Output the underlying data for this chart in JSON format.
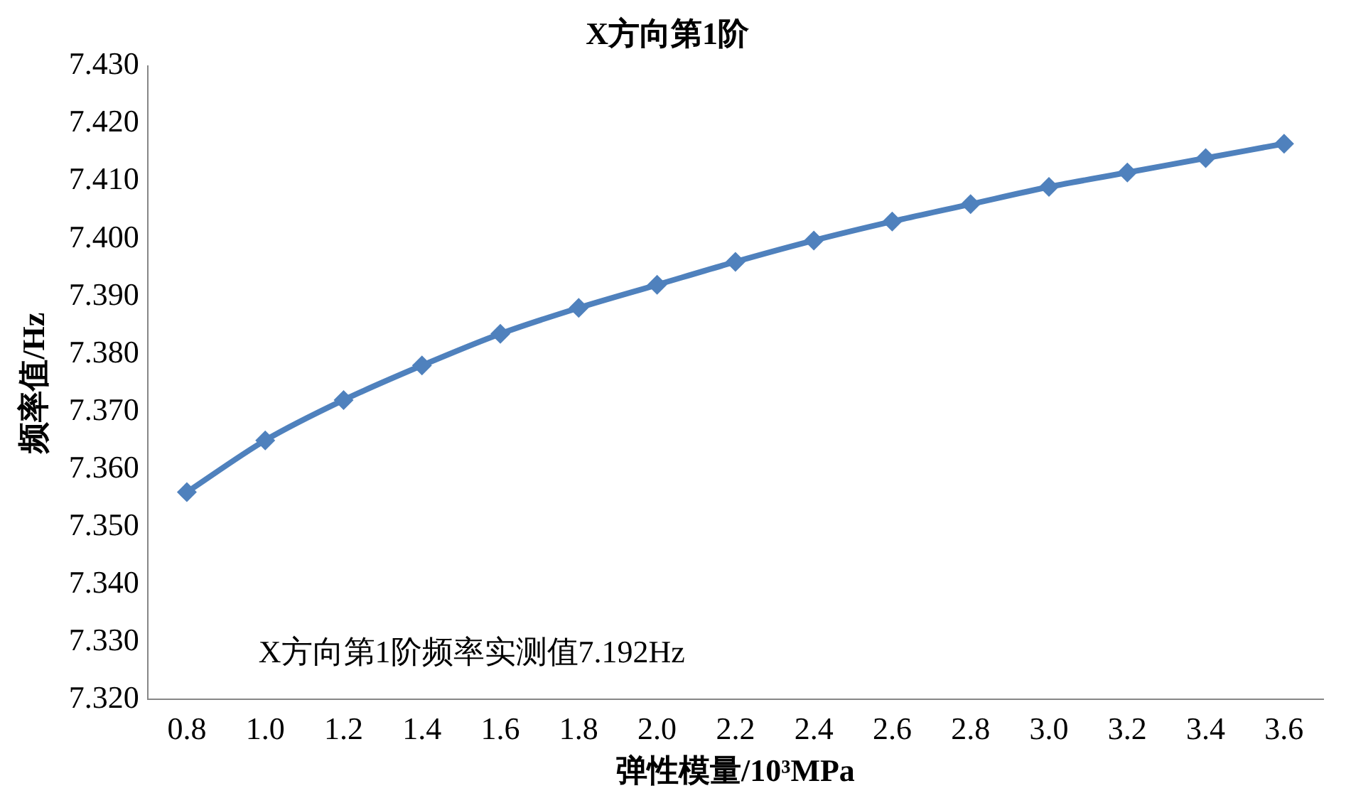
{
  "chart_data": {
    "type": "line",
    "title": "X方向第1阶",
    "xlabel": "弹性模量/10³MPa",
    "ylabel": "频率值/Hz",
    "categories": [
      "0.8",
      "1.0",
      "1.2",
      "1.4",
      "1.6",
      "1.8",
      "2.0",
      "2.2",
      "2.4",
      "2.6",
      "2.8",
      "3.0",
      "3.2",
      "3.4",
      "3.6"
    ],
    "series": [
      {
        "color": "#4f81bd",
        "values": [
          7.356,
          7.365,
          7.372,
          7.378,
          7.3835,
          7.388,
          7.392,
          7.396,
          7.3997,
          7.403,
          7.406,
          7.409,
          7.4115,
          7.414,
          7.4165
        ]
      }
    ],
    "ylim": [
      7.32,
      7.43
    ],
    "yticks": [
      {
        "value": 7.32,
        "label": "7.320"
      },
      {
        "value": 7.33,
        "label": "7.330"
      },
      {
        "value": 7.34,
        "label": "7.340"
      },
      {
        "value": 7.35,
        "label": "7.350"
      },
      {
        "value": 7.36,
        "label": "7.360"
      },
      {
        "value": 7.37,
        "label": "7.370"
      },
      {
        "value": 7.38,
        "label": "7.380"
      },
      {
        "value": 7.39,
        "label": "7.390"
      },
      {
        "value": 7.4,
        "label": "7.400"
      },
      {
        "value": 7.41,
        "label": "7.410"
      },
      {
        "value": 7.42,
        "label": "7.420"
      },
      {
        "value": 7.43,
        "label": "7.430"
      }
    ],
    "annotations": [
      "X方向第1阶频率实测值7.192Hz"
    ],
    "grid": false,
    "legend": false,
    "marker": "diamond",
    "line_style": "solid"
  }
}
